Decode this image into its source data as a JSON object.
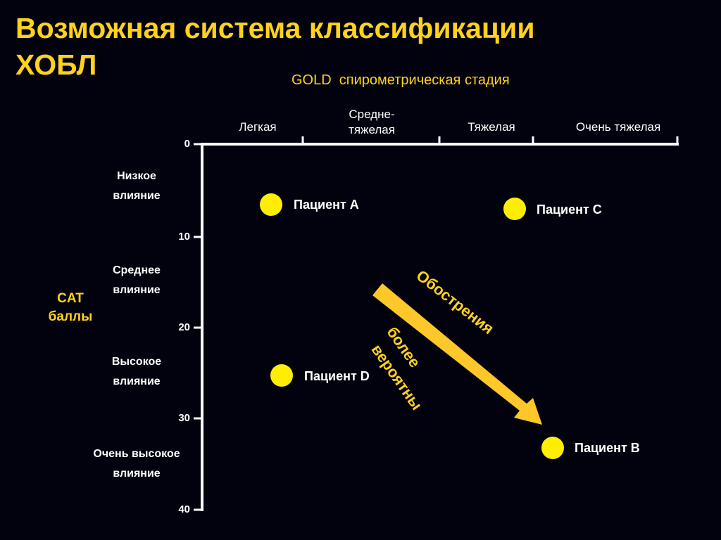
{
  "title": {
    "line1": "Возможная система классификации",
    "line2": "ХОБЛ"
  },
  "subtitle": "GOLD  спирометрическая стадия",
  "severity_labels": [
    "Легкая",
    "Средне-\nтяжелая",
    "Тяжелая",
    "Очень тяжелая"
  ],
  "y_ticks": [
    "0",
    "10",
    "20",
    "30",
    "40"
  ],
  "impact_labels": [
    "Низкое\nвлияние",
    "Среднее\nвлияние",
    "Высокое\nвлияние",
    "Очень высокое\nвлияние"
  ],
  "y_axis_label": "CAT\nбаллы",
  "patients": [
    "Пациент А",
    "Пациент С",
    "Пациент D",
    "Пациент В"
  ],
  "arrow_text": {
    "line1": "Обострения",
    "line2": "более",
    "line3": "вероятны"
  },
  "colors": {
    "accent": "#ffd21e",
    "dot": "#ffee00",
    "arrow": "#ffc82a",
    "text": "#ffffff",
    "background": "#02020e"
  }
}
